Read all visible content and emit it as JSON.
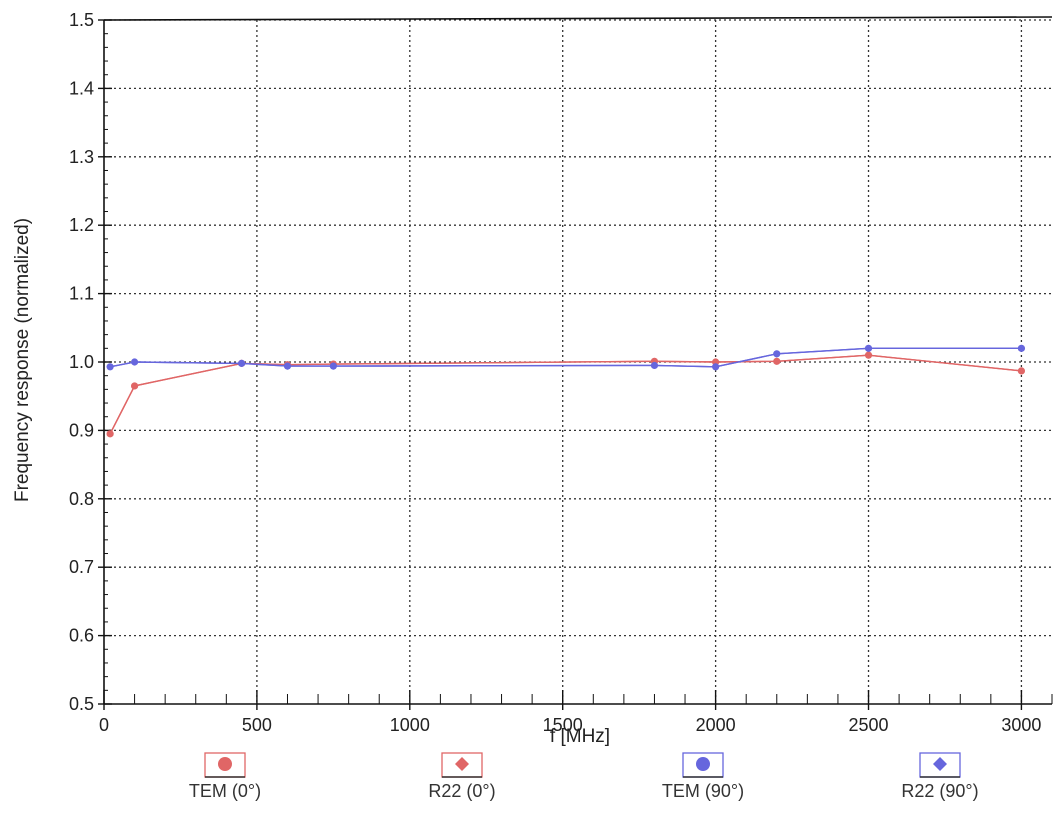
{
  "chart_data": {
    "type": "line",
    "xlabel": "f [MHz]",
    "ylabel": "Frequency response (normalized)",
    "xlim": [
      0,
      3100
    ],
    "ylim": [
      0.5,
      1.5
    ],
    "x_ticks": [
      0,
      500,
      1000,
      1500,
      2000,
      2500,
      3000
    ],
    "y_ticks": [
      0.5,
      0.6,
      0.7,
      0.8,
      0.9,
      1.0,
      1.1,
      1.2,
      1.3,
      1.4,
      1.5
    ],
    "x_tick_labels": [
      "0",
      "500",
      "1000",
      "1500",
      "2000",
      "2500",
      "3000"
    ],
    "y_tick_labels": [
      "0.5",
      "0.6",
      "0.7",
      "0.8",
      "0.9",
      "1.0",
      "1.1",
      "1.2",
      "1.3",
      "1.4",
      "1.5"
    ],
    "grid": "dotted",
    "legend_position": "bottom",
    "series": [
      {
        "name": "TEM (0°)",
        "color": "#e06666",
        "marker": "circle",
        "x": [
          20,
          100,
          450,
          600,
          750,
          1800,
          2000,
          2200,
          2500,
          3000
        ],
        "y": [
          0.895,
          0.965,
          0.998,
          0.996,
          0.997,
          1.001,
          1.0,
          1.001,
          1.01,
          0.987
        ]
      },
      {
        "name": "R22 (0°)",
        "color": "#e06666",
        "marker": "diamond",
        "x": [
          20,
          100,
          450,
          600,
          750,
          1800,
          2000,
          2200,
          2500,
          3000
        ],
        "y": [
          0.895,
          0.965,
          0.998,
          0.996,
          0.997,
          1.001,
          1.0,
          1.001,
          1.01,
          0.987
        ]
      },
      {
        "name": "TEM (90°)",
        "color": "#6666dd",
        "marker": "circle",
        "x": [
          20,
          100,
          450,
          600,
          750,
          1800,
          2000,
          2200,
          2500,
          3000
        ],
        "y": [
          0.993,
          1.0,
          0.998,
          0.994,
          0.994,
          0.995,
          0.993,
          1.012,
          1.02,
          1.02
        ]
      },
      {
        "name": "R22 (90°)",
        "color": "#6666dd",
        "marker": "diamond",
        "x": [
          20,
          100,
          450,
          600,
          750,
          1800,
          2000,
          2200,
          2500,
          3000
        ],
        "y": [
          0.993,
          1.0,
          0.998,
          0.994,
          0.994,
          0.995,
          0.993,
          1.012,
          1.02,
          1.02
        ]
      }
    ]
  }
}
